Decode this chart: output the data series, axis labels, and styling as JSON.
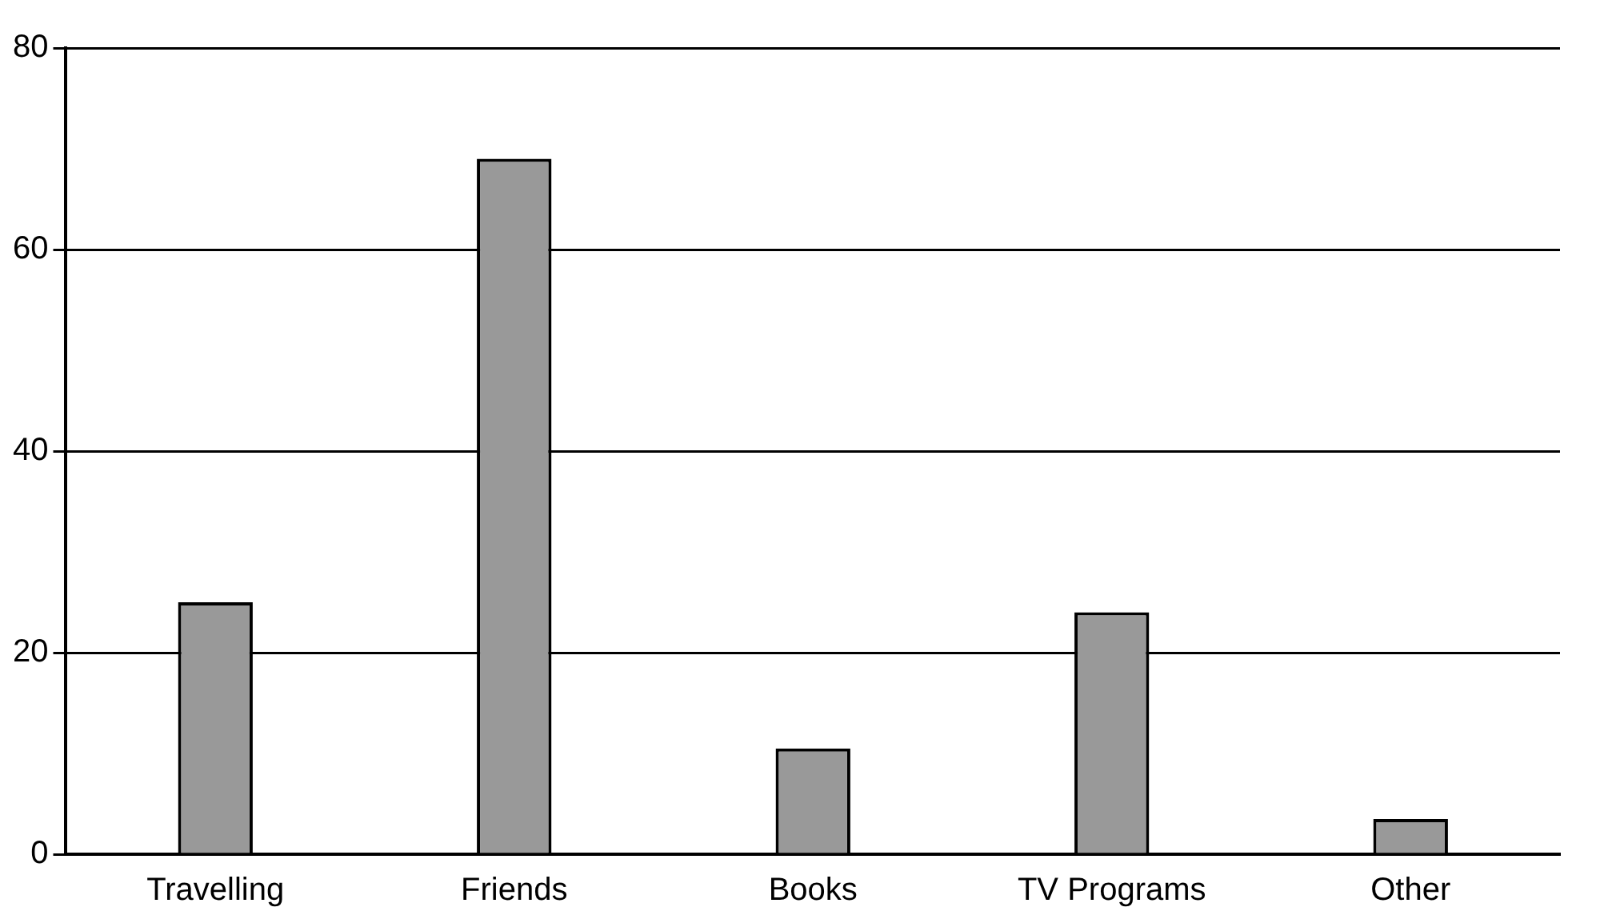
{
  "chart_data": {
    "type": "bar",
    "categories": [
      "Travelling",
      "Friends",
      "Books",
      "TV Programs",
      "Other"
    ],
    "values": [
      25,
      69,
      10.5,
      24,
      3.5
    ],
    "color": "#999999",
    "ylim": [
      0,
      80
    ],
    "yticks": [
      0,
      20,
      40,
      60,
      80
    ],
    "grid": "y"
  }
}
